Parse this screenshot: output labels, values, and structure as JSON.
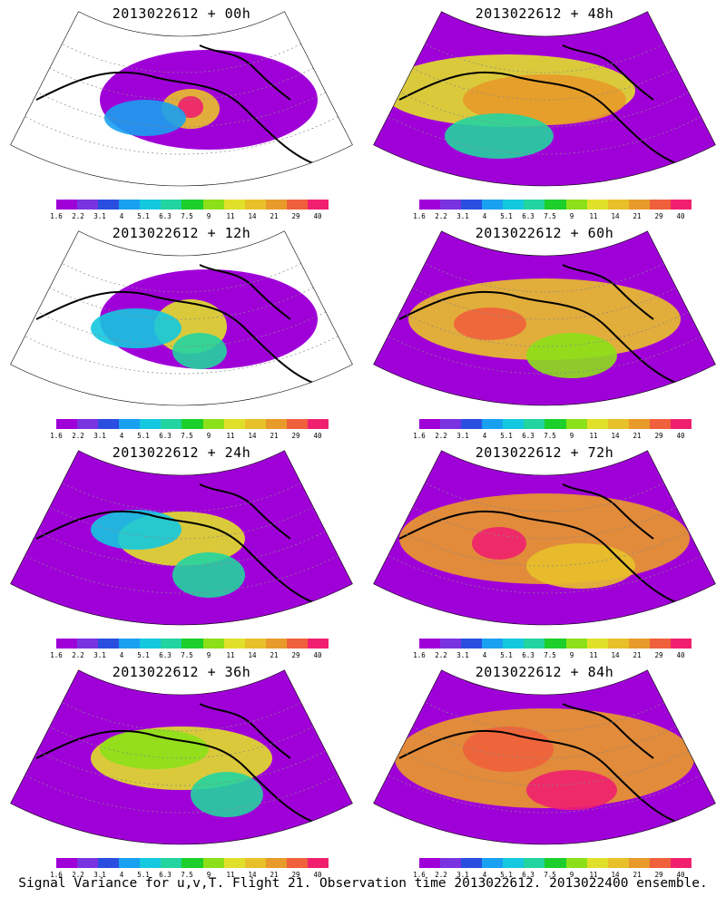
{
  "panels": [
    {
      "title": "2013022612 + 00h"
    },
    {
      "title": "2013022612 + 48h"
    },
    {
      "title": "2013022612 + 12h"
    },
    {
      "title": "2013022612 + 60h"
    },
    {
      "title": "2013022612 + 24h"
    },
    {
      "title": "2013022612 + 72h"
    },
    {
      "title": "2013022612 + 36h"
    },
    {
      "title": "2013022612 + 84h"
    }
  ],
  "colorbar": {
    "labels": [
      "1.6",
      "2.2",
      "3.1",
      "4",
      "5.1",
      "6.3",
      "7.5",
      "9",
      "11",
      "14",
      "21",
      "29",
      "40"
    ],
    "colors": [
      "#a000d8",
      "#7a33e0",
      "#2a4fe0",
      "#1aa0f0",
      "#14c8e0",
      "#22d4a0",
      "#1ccf2a",
      "#8ce01a",
      "#e0e02a",
      "#e8c02a",
      "#e89a2a",
      "#f0603c",
      "#f0206e"
    ]
  },
  "caption": "Signal Variance for u,v,T. Flight 21. Observation time 2013022612. 2013022400 ensemble."
}
